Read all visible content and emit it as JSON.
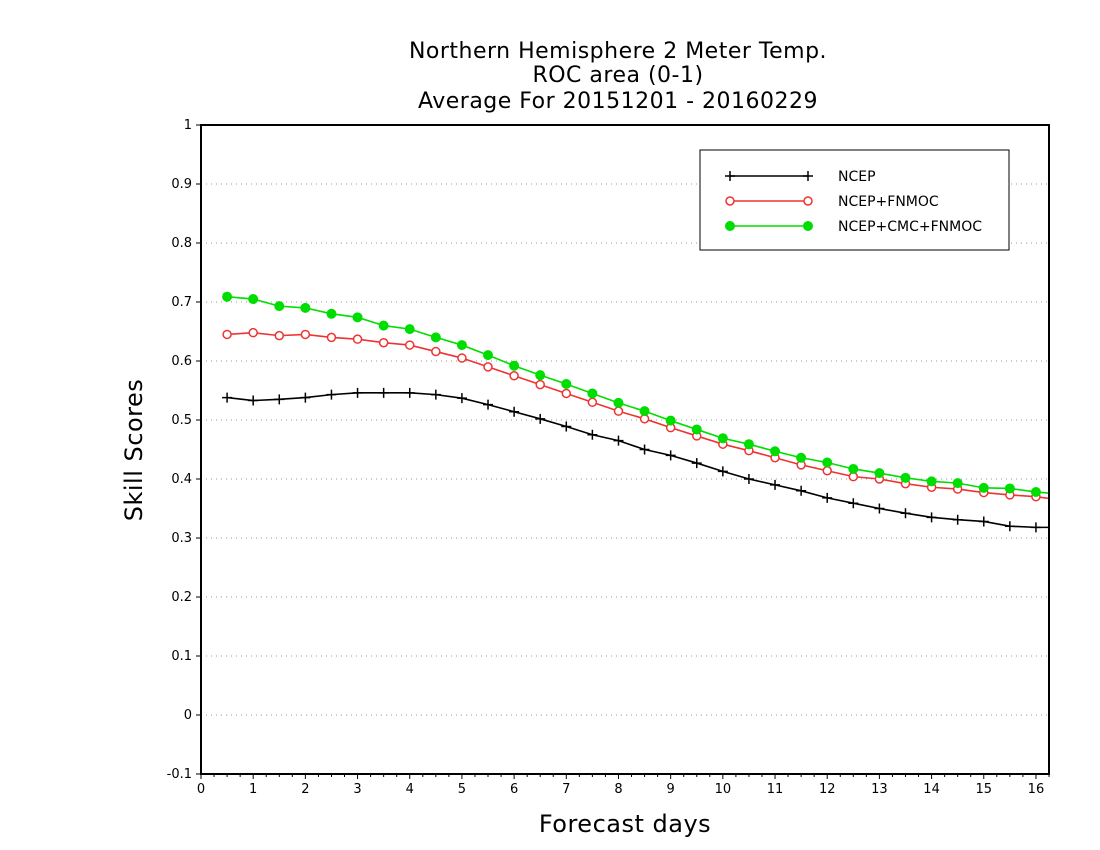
{
  "chart_data": {
    "type": "line",
    "title": [
      "Northern Hemisphere 2 Meter Temp.",
      "ROC area (0-1)",
      "Average For 20151201 - 20160229"
    ],
    "xlabel": "Forecast days",
    "ylabel": "Skill Scores",
    "xlim": [
      0,
      16.25
    ],
    "ylim": [
      -0.1,
      1
    ],
    "xticks": [
      0,
      1,
      2,
      3,
      4,
      5,
      6,
      7,
      8,
      9,
      10,
      11,
      12,
      13,
      14,
      15,
      16
    ],
    "yticks": [
      -0.1,
      0,
      0.1,
      0.2,
      0.3,
      0.4,
      0.5,
      0.6,
      0.7,
      0.8,
      0.9,
      1
    ],
    "ytick_labels": [
      "-0.1",
      "0",
      "0.1",
      "0.2",
      "0.3",
      "0.4",
      "0.5",
      "0.6",
      "0.7",
      "0.8",
      "0.9",
      "1"
    ],
    "grid": true,
    "legend_position": "top-right",
    "x": [
      0.5,
      1,
      1.5,
      2,
      2.5,
      3,
      3.5,
      4,
      4.5,
      5,
      5.5,
      6,
      6.5,
      7,
      7.5,
      8,
      8.5,
      9,
      9.5,
      10,
      10.5,
      11,
      11.5,
      12,
      12.5,
      13,
      13.5,
      14,
      14.5,
      15,
      15.5,
      16,
      16.25
    ],
    "series": [
      {
        "name": "NCEP",
        "color": "#000000",
        "marker": "plus",
        "values": [
          0.538,
          0.533,
          0.535,
          0.538,
          0.543,
          0.546,
          0.546,
          0.546,
          0.543,
          0.537,
          0.526,
          0.514,
          0.502,
          0.489,
          0.475,
          0.465,
          0.45,
          0.44,
          0.427,
          0.413,
          0.4,
          0.39,
          0.38,
          0.368,
          0.359,
          0.35,
          0.342,
          0.335,
          0.331,
          0.328,
          0.32,
          0.318,
          0.318
        ]
      },
      {
        "name": "NCEP+FNMOC",
        "color": "#ee3333",
        "marker": "open-circle",
        "values": [
          0.645,
          0.648,
          0.643,
          0.645,
          0.64,
          0.637,
          0.631,
          0.627,
          0.616,
          0.605,
          0.59,
          0.575,
          0.56,
          0.545,
          0.53,
          0.515,
          0.502,
          0.487,
          0.473,
          0.459,
          0.448,
          0.436,
          0.424,
          0.414,
          0.404,
          0.4,
          0.392,
          0.386,
          0.383,
          0.377,
          0.373,
          0.37,
          0.367
        ]
      },
      {
        "name": "NCEP+CMC+FNMOC",
        "color": "#00dd00",
        "marker": "filled-circle",
        "values": [
          0.709,
          0.705,
          0.693,
          0.69,
          0.68,
          0.674,
          0.66,
          0.654,
          0.64,
          0.627,
          0.61,
          0.592,
          0.576,
          0.561,
          0.545,
          0.529,
          0.515,
          0.499,
          0.484,
          0.469,
          0.459,
          0.447,
          0.436,
          0.428,
          0.417,
          0.41,
          0.402,
          0.396,
          0.393,
          0.385,
          0.384,
          0.378,
          0.376
        ]
      }
    ]
  }
}
